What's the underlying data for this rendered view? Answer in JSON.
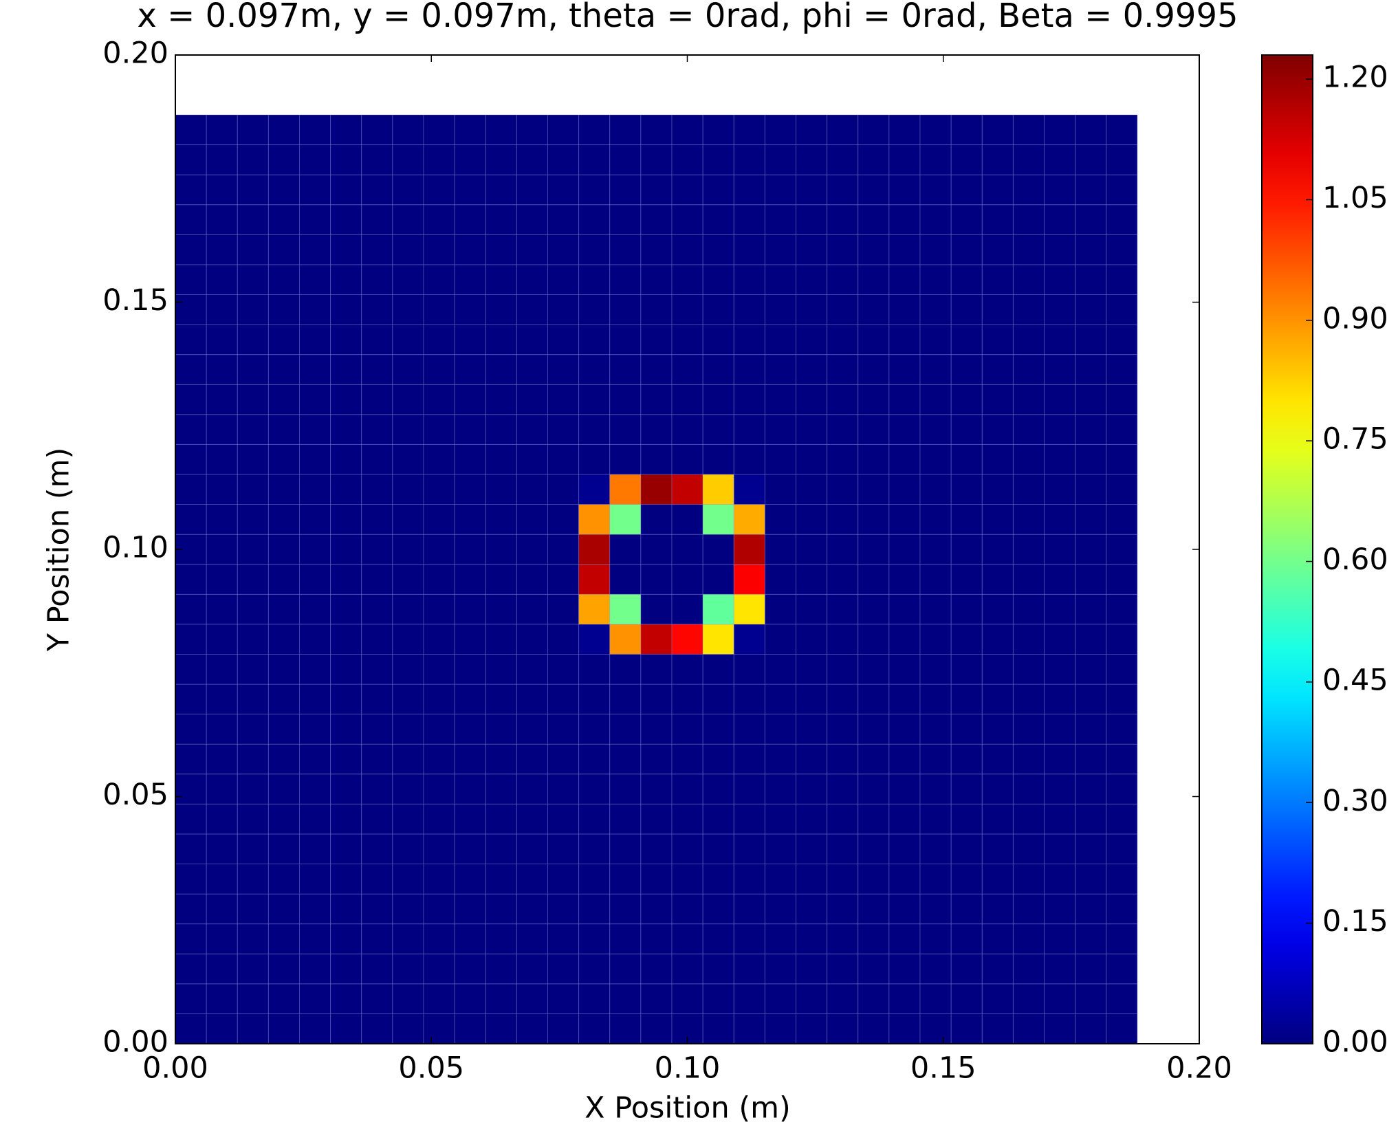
{
  "chart_data": {
    "type": "heatmap",
    "title": "x = 0.097m, y = 0.097m, theta = 0rad, phi = 0rad, Beta = 0.9995",
    "xlabel": "X Position (m)",
    "ylabel": "Y Position (m)",
    "xlim": [
      0,
      0.2
    ],
    "ylim": [
      0,
      0.2
    ],
    "xticks": [
      {
        "value": 0,
        "label": "0.00"
      },
      {
        "value": 0.05,
        "label": "0.05"
      },
      {
        "value": 0.1,
        "label": "0.10"
      },
      {
        "value": 0.15,
        "label": "0.15"
      },
      {
        "value": 0.2,
        "label": "0.20"
      }
    ],
    "yticks": [
      {
        "value": 0,
        "label": "0.00"
      },
      {
        "value": 0.05,
        "label": "0.05"
      },
      {
        "value": 0.1,
        "label": "0.10"
      },
      {
        "value": 0.15,
        "label": "0.15"
      },
      {
        "value": 0.2,
        "label": "0.20"
      }
    ],
    "extent": [
      0,
      0.1879,
      0,
      0.1879
    ],
    "colormap": "jet",
    "clim": [
      0,
      1.23
    ],
    "cticks": [
      {
        "value": 0,
        "label": "0.00"
      },
      {
        "value": 0.15,
        "label": "0.15"
      },
      {
        "value": 0.3,
        "label": "0.30"
      },
      {
        "value": 0.45,
        "label": "0.45"
      },
      {
        "value": 0.6,
        "label": "0.60"
      },
      {
        "value": 0.75,
        "label": "0.75"
      },
      {
        "value": 0.9,
        "label": "0.90"
      },
      {
        "value": 1.05,
        "label": "1.05"
      },
      {
        "value": 1.2,
        "label": "1.20"
      }
    ],
    "z": [
      [
        0,
        0,
        0,
        0,
        0,
        0,
        0,
        0,
        0,
        0,
        0,
        0,
        0,
        0,
        0,
        0,
        0,
        0,
        0,
        0,
        0,
        0,
        0,
        0,
        0,
        0,
        0,
        0,
        0,
        0,
        0
      ],
      [
        0,
        0,
        0,
        0,
        0,
        0,
        0,
        0,
        0,
        0,
        0,
        0,
        0,
        0,
        0,
        0,
        0,
        0,
        0,
        0,
        0,
        0,
        0,
        0,
        0,
        0,
        0,
        0,
        0,
        0,
        0
      ],
      [
        0,
        0,
        0,
        0,
        0,
        0,
        0,
        0,
        0,
        0,
        0,
        0,
        0,
        0,
        0,
        0,
        0,
        0,
        0,
        0,
        0,
        0,
        0,
        0,
        0,
        0,
        0,
        0,
        0,
        0,
        0
      ],
      [
        0,
        0,
        0,
        0,
        0,
        0,
        0,
        0,
        0,
        0,
        0,
        0,
        0,
        0,
        0,
        0,
        0,
        0,
        0,
        0,
        0,
        0,
        0,
        0,
        0,
        0,
        0,
        0,
        0,
        0,
        0
      ],
      [
        0,
        0,
        0,
        0,
        0,
        0,
        0,
        0,
        0,
        0,
        0,
        0,
        0,
        0,
        0,
        0,
        0,
        0,
        0,
        0,
        0,
        0,
        0,
        0,
        0,
        0,
        0,
        0,
        0,
        0,
        0
      ],
      [
        0,
        0,
        0,
        0,
        0,
        0,
        0,
        0,
        0,
        0,
        0,
        0,
        0,
        0,
        0,
        0,
        0,
        0,
        0,
        0,
        0,
        0,
        0,
        0,
        0,
        0,
        0,
        0,
        0,
        0,
        0
      ],
      [
        0,
        0,
        0,
        0,
        0,
        0,
        0,
        0,
        0,
        0,
        0,
        0,
        0,
        0,
        0,
        0,
        0,
        0,
        0,
        0,
        0,
        0,
        0,
        0,
        0,
        0,
        0,
        0,
        0,
        0,
        0
      ],
      [
        0,
        0,
        0,
        0,
        0,
        0,
        0,
        0,
        0,
        0,
        0,
        0,
        0,
        0,
        0,
        0,
        0,
        0,
        0,
        0,
        0,
        0,
        0,
        0,
        0,
        0,
        0,
        0,
        0,
        0,
        0
      ],
      [
        0,
        0,
        0,
        0,
        0,
        0,
        0,
        0,
        0,
        0,
        0,
        0,
        0,
        0,
        0,
        0,
        0,
        0,
        0,
        0,
        0,
        0,
        0,
        0,
        0,
        0,
        0,
        0,
        0,
        0,
        0
      ],
      [
        0,
        0,
        0,
        0,
        0,
        0,
        0,
        0,
        0,
        0,
        0,
        0,
        0,
        0,
        0,
        0,
        0,
        0,
        0,
        0,
        0,
        0,
        0,
        0,
        0,
        0,
        0,
        0,
        0,
        0,
        0
      ],
      [
        0,
        0,
        0,
        0,
        0,
        0,
        0,
        0,
        0,
        0,
        0,
        0,
        0,
        0,
        0,
        0,
        0,
        0,
        0,
        0,
        0,
        0,
        0,
        0,
        0,
        0,
        0,
        0,
        0,
        0,
        0
      ],
      [
        0,
        0,
        0,
        0,
        0,
        0,
        0,
        0,
        0,
        0,
        0,
        0,
        0,
        0,
        0,
        0,
        0,
        0,
        0,
        0,
        0,
        0,
        0,
        0,
        0,
        0,
        0,
        0,
        0,
        0,
        0
      ],
      [
        0,
        0,
        0,
        0,
        0,
        0,
        0,
        0,
        0,
        0,
        0,
        0,
        0,
        0,
        0,
        0,
        0,
        0,
        0,
        0,
        0,
        0,
        0,
        0,
        0,
        0,
        0,
        0,
        0,
        0,
        0
      ],
      [
        0,
        0,
        0,
        0,
        0,
        0,
        0,
        0,
        0,
        0,
        0,
        0,
        0,
        0.02,
        0.9,
        1.15,
        1.07,
        0.8,
        0.02,
        0,
        0,
        0,
        0,
        0,
        0,
        0,
        0,
        0,
        0,
        0,
        0
      ],
      [
        0,
        0,
        0,
        0,
        0,
        0,
        0,
        0,
        0,
        0,
        0,
        0,
        0,
        0.88,
        0.6,
        0,
        0,
        0.58,
        0.8,
        0,
        0,
        0,
        0,
        0,
        0,
        0,
        0,
        0,
        0,
        0,
        0
      ],
      [
        0,
        0,
        0,
        0,
        0,
        0,
        0,
        0,
        0,
        0,
        0,
        0,
        0,
        1.15,
        0,
        0,
        0,
        0,
        1.08,
        0,
        0,
        0,
        0,
        0,
        0,
        0,
        0,
        0,
        0,
        0,
        0
      ],
      [
        0,
        0,
        0,
        0,
        0,
        0,
        0,
        0,
        0,
        0,
        0,
        0,
        0,
        1.18,
        0,
        0,
        0,
        0,
        1.17,
        0,
        0,
        0,
        0,
        0,
        0,
        0,
        0,
        0,
        0,
        0,
        0
      ],
      [
        0,
        0,
        0,
        0,
        0,
        0,
        0,
        0,
        0,
        0,
        0,
        0,
        0,
        0.9,
        0.6,
        0,
        0,
        0.6,
        0.87,
        0,
        0,
        0,
        0,
        0,
        0,
        0,
        0,
        0,
        0,
        0,
        0
      ],
      [
        0,
        0,
        0,
        0,
        0,
        0,
        0,
        0,
        0,
        0,
        0,
        0,
        0,
        0.02,
        0.93,
        1.2,
        1.15,
        0.83,
        0.02,
        0,
        0,
        0,
        0,
        0,
        0,
        0,
        0,
        0,
        0,
        0,
        0
      ],
      [
        0,
        0,
        0,
        0,
        0,
        0,
        0,
        0,
        0,
        0,
        0,
        0,
        0,
        0,
        0,
        0,
        0,
        0,
        0,
        0,
        0,
        0,
        0,
        0,
        0,
        0,
        0,
        0,
        0,
        0,
        0
      ],
      [
        0,
        0,
        0,
        0,
        0,
        0,
        0,
        0,
        0,
        0,
        0,
        0,
        0,
        0,
        0,
        0,
        0,
        0,
        0,
        0,
        0,
        0,
        0,
        0,
        0,
        0,
        0,
        0,
        0,
        0,
        0
      ],
      [
        0,
        0,
        0,
        0,
        0,
        0,
        0,
        0,
        0,
        0,
        0,
        0,
        0,
        0,
        0,
        0,
        0,
        0,
        0,
        0,
        0,
        0,
        0,
        0,
        0,
        0,
        0,
        0,
        0,
        0,
        0
      ],
      [
        0,
        0,
        0,
        0,
        0,
        0,
        0,
        0,
        0,
        0,
        0,
        0,
        0,
        0,
        0,
        0,
        0,
        0,
        0,
        0,
        0,
        0,
        0,
        0,
        0,
        0,
        0,
        0,
        0,
        0,
        0
      ],
      [
        0,
        0,
        0,
        0,
        0,
        0,
        0,
        0,
        0,
        0,
        0,
        0,
        0,
        0,
        0,
        0,
        0,
        0,
        0,
        0,
        0,
        0,
        0,
        0,
        0,
        0,
        0,
        0,
        0,
        0,
        0
      ],
      [
        0,
        0,
        0,
        0,
        0,
        0,
        0,
        0,
        0,
        0,
        0,
        0,
        0,
        0,
        0,
        0,
        0,
        0,
        0,
        0,
        0,
        0,
        0,
        0,
        0,
        0,
        0,
        0,
        0,
        0,
        0
      ],
      [
        0,
        0,
        0,
        0,
        0,
        0,
        0,
        0,
        0,
        0,
        0,
        0,
        0,
        0,
        0,
        0,
        0,
        0,
        0,
        0,
        0,
        0,
        0,
        0,
        0,
        0,
        0,
        0,
        0,
        0,
        0
      ],
      [
        0,
        0,
        0,
        0,
        0,
        0,
        0,
        0,
        0,
        0,
        0,
        0,
        0,
        0,
        0,
        0,
        0,
        0,
        0,
        0,
        0,
        0,
        0,
        0,
        0,
        0,
        0,
        0,
        0,
        0,
        0
      ],
      [
        0,
        0,
        0,
        0,
        0,
        0,
        0,
        0,
        0,
        0,
        0,
        0,
        0,
        0,
        0,
        0,
        0,
        0,
        0,
        0,
        0,
        0,
        0,
        0,
        0,
        0,
        0,
        0,
        0,
        0,
        0
      ],
      [
        0,
        0,
        0,
        0,
        0,
        0,
        0,
        0,
        0,
        0,
        0,
        0,
        0,
        0,
        0,
        0,
        0,
        0,
        0,
        0,
        0,
        0,
        0,
        0,
        0,
        0,
        0,
        0,
        0,
        0,
        0
      ],
      [
        0,
        0,
        0,
        0,
        0,
        0,
        0,
        0,
        0,
        0,
        0,
        0,
        0,
        0,
        0,
        0,
        0,
        0,
        0,
        0,
        0,
        0,
        0,
        0,
        0,
        0,
        0,
        0,
        0,
        0,
        0
      ],
      [
        0,
        0,
        0,
        0,
        0,
        0,
        0,
        0,
        0,
        0,
        0,
        0,
        0,
        0,
        0,
        0,
        0,
        0,
        0,
        0,
        0,
        0,
        0,
        0,
        0,
        0,
        0,
        0,
        0,
        0,
        0
      ]
    ]
  }
}
